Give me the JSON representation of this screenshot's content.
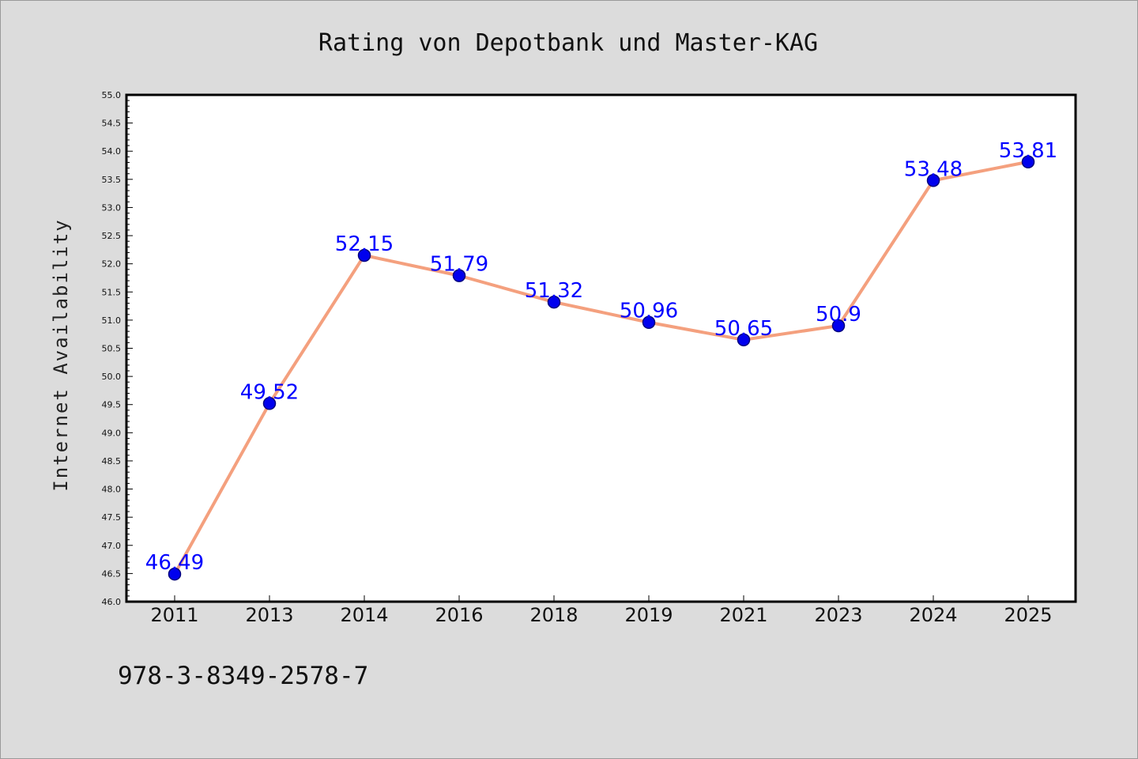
{
  "chart_data": {
    "type": "line",
    "title": "Rating von Depotbank und Master-KAG",
    "xlabel": "",
    "ylabel": "Internet Availability",
    "categories": [
      "2011",
      "2013",
      "2014",
      "2016",
      "2018",
      "2019",
      "2021",
      "2023",
      "2024",
      "2025"
    ],
    "series": [
      {
        "values": [
          46.49,
          49.52,
          52.15,
          51.79,
          51.32,
          50.96,
          50.65,
          50.9,
          53.48,
          53.81
        ],
        "data_labels": [
          "46.49",
          "49.52",
          "52.15",
          "51.79",
          "51.32",
          "50.96",
          "50.65",
          "50.9",
          "53.48",
          "53.81"
        ]
      }
    ],
    "ylim": [
      46.0,
      55.0
    ],
    "yticks": [
      "46.0",
      "46.5",
      "47.0",
      "47.5",
      "48.0",
      "48.5",
      "49.0",
      "49.5",
      "50.0",
      "50.5",
      "51.0",
      "51.5",
      "52.0",
      "52.5",
      "53.0",
      "53.5",
      "54.0",
      "54.5",
      "55.0"
    ],
    "grid": false,
    "legend": "none",
    "annotation": "978-3-8349-2578-7",
    "colors": {
      "line": "#f4a07e",
      "marker_fill": "#0000ee",
      "marker_edge": "#000080",
      "data_label": "#0000ff",
      "plot_background": "#ffffff",
      "figure_background": "#dcdcdc"
    }
  }
}
